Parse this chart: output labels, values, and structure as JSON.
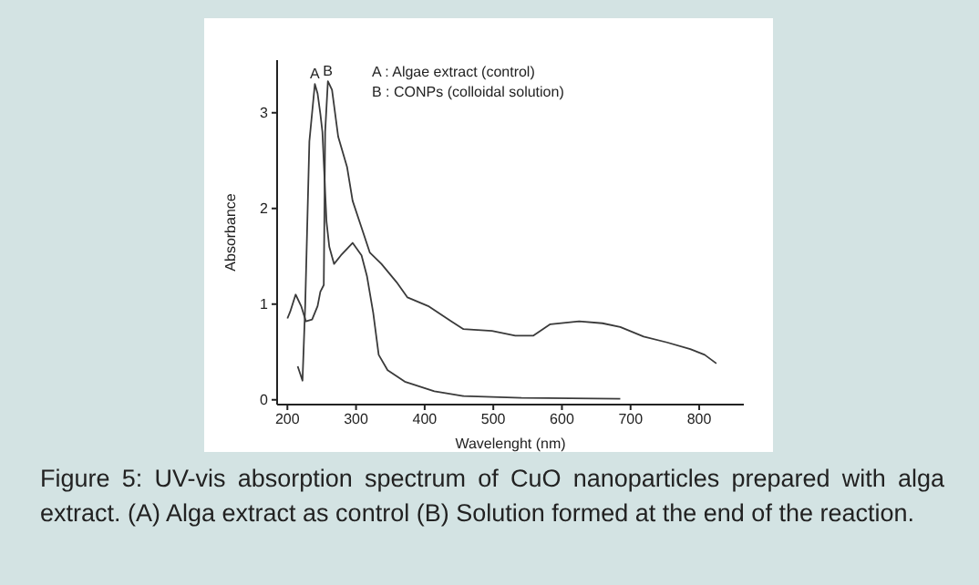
{
  "chart_data": {
    "type": "line",
    "xlabel": "Wavelenght (nm)",
    "ylabel": "Absorbance",
    "xlim": [
      185,
      865
    ],
    "ylim": [
      -0.05,
      3.55
    ],
    "xticks": [
      200,
      300,
      400,
      500,
      600,
      700,
      800
    ],
    "yticks": [
      0,
      1,
      2,
      3
    ],
    "grid": false,
    "legend": false,
    "marker": "none",
    "line_style": "solid",
    "series": [
      {
        "color": "#3a3a3a",
        "x": [
          215,
          222,
          226,
          232,
          240,
          244,
          248,
          251,
          257,
          261,
          268,
          278,
          295,
          308,
          316,
          325,
          333,
          346,
          371,
          414,
          456,
          541,
          685
        ],
        "values": [
          0.35,
          0.2,
          1.0,
          2.7,
          3.3,
          3.2,
          2.99,
          2.8,
          1.86,
          1.6,
          1.42,
          1.51,
          1.64,
          1.51,
          1.29,
          0.91,
          0.47,
          0.31,
          0.19,
          0.09,
          0.04,
          0.02,
          0.01
        ]
      },
      {
        "color": "#3a3a3a",
        "x": [
          200,
          204,
          212,
          220,
          227,
          236,
          244,
          248,
          253,
          255,
          259,
          265,
          274,
          287,
          295,
          308,
          320,
          337,
          359,
          375,
          405,
          439,
          456,
          498,
          532,
          558,
          583,
          625,
          659,
          685,
          719,
          753,
          787,
          808,
          825
        ],
        "values": [
          0.85,
          0.92,
          1.1,
          0.98,
          0.82,
          0.84,
          0.98,
          1.13,
          1.2,
          2.8,
          3.33,
          3.24,
          2.75,
          2.43,
          2.08,
          1.8,
          1.54,
          1.42,
          1.23,
          1.07,
          0.98,
          0.82,
          0.74,
          0.72,
          0.67,
          0.67,
          0.79,
          0.82,
          0.8,
          0.76,
          0.66,
          0.6,
          0.53,
          0.47,
          0.38
        ]
      }
    ],
    "annotations": [
      {
        "text": "A",
        "x": 240,
        "y": 3.3
      },
      {
        "text": "B",
        "x": 259,
        "y": 3.33
      },
      "A : Algae extract (control)",
      "B : CONPs (colloidal solution)",
      "Figure 5: UV-vis absorption spectrum of CuO nanoparticles prepared with alga extract. (A) Alga extract as control (B) Solution formed at the end of the reaction."
    ]
  }
}
